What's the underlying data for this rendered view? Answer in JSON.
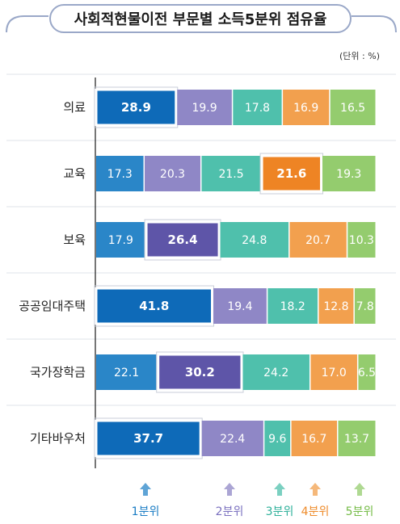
{
  "chart_data": {
    "type": "bar",
    "orientation": "horizontal",
    "stacked": true,
    "title": "사회적현물이전 부문별 소득5분위 점유율",
    "unit_label": "(단위 : %)",
    "categories": [
      "의료",
      "교육",
      "보육",
      "공공임대주택",
      "국가장학금",
      "기타바우처"
    ],
    "series": [
      {
        "name": "1분위",
        "values": [
          28.9,
          17.3,
          17.9,
          41.8,
          22.1,
          37.7
        ]
      },
      {
        "name": "2분위",
        "values": [
          19.9,
          20.3,
          26.4,
          19.4,
          30.2,
          22.4
        ]
      },
      {
        "name": "3분위",
        "values": [
          17.8,
          21.5,
          24.8,
          18.2,
          24.2,
          9.6
        ]
      },
      {
        "name": "4분위",
        "values": [
          16.9,
          21.6,
          20.7,
          12.8,
          17.0,
          16.7
        ]
      },
      {
        "name": "5분위",
        "values": [
          16.5,
          19.3,
          10.3,
          7.8,
          6.5,
          13.7
        ]
      }
    ],
    "value_labels": [
      [
        "28.9",
        "19.9",
        "17.8",
        "16.9",
        "16.5"
      ],
      [
        "17.3",
        "20.3",
        "21.5",
        "21.6",
        "19.3"
      ],
      [
        "17.9",
        "26.4",
        "24.8",
        "20.7",
        "10.3"
      ],
      [
        "41.8",
        "19.4",
        "18.2",
        "12.8",
        "7.8"
      ],
      [
        "22.1",
        "30.2",
        "24.2",
        "17.0",
        "6.5"
      ],
      [
        "37.7",
        "22.4",
        "9.6",
        "16.7",
        "13.7"
      ]
    ],
    "highlighted_series_index": [
      0,
      3,
      1,
      0,
      1,
      0
    ],
    "xlim": [
      0,
      100
    ],
    "legend_position": "bottom",
    "colors": {
      "series": [
        "#2a86c8",
        "#8f87c6",
        "#4fc0ac",
        "#f2a04e",
        "#94cc6e"
      ],
      "highlight": [
        "#0e6ab8",
        "#5e55a8",
        "#2aa88f",
        "#ee8424",
        "#6eb83f"
      ],
      "legend_text": [
        "#1a7cc4",
        "#7a70bf",
        "#2eb09a",
        "#ee8b2a",
        "#74bb46"
      ],
      "title_text": "#1a1a1a",
      "title_border": "#9aa8c8"
    }
  }
}
